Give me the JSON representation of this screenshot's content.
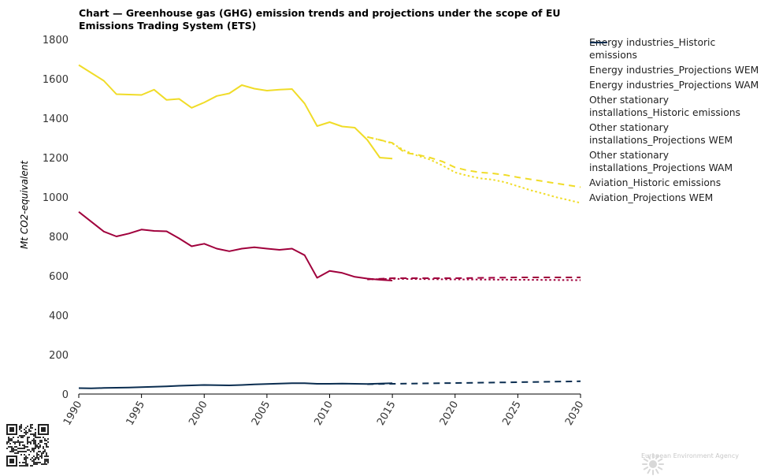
{
  "chart_data": {
    "type": "line",
    "title": "Chart — Greenhouse gas (GHG) emission trends and projections under the scope of EU Emissions Trading System (ETS)",
    "ylabel": "Mt CO2-equivalent",
    "xlabel": "",
    "ylim": [
      0,
      1800
    ],
    "xlim": [
      1990,
      2030
    ],
    "yticks": [
      0,
      200,
      400,
      600,
      800,
      1000,
      1200,
      1400,
      1600,
      1800
    ],
    "xticks": [
      1990,
      1995,
      2000,
      2005,
      2010,
      2015,
      2020,
      2025,
      2030
    ],
    "grid": false,
    "legend_position": "right",
    "series": [
      {
        "name": "Energy industries_Historic emissions",
        "color": "#f0dc28",
        "dash": "solid",
        "x": [
          1990,
          1991,
          1992,
          1993,
          1994,
          1995,
          1996,
          1997,
          1998,
          1999,
          2000,
          2001,
          2002,
          2003,
          2004,
          2005,
          2006,
          2007,
          2008,
          2009,
          2010,
          2011,
          2012,
          2013,
          2014,
          2015
        ],
        "y": [
          1670,
          1630,
          1590,
          1522,
          1520,
          1518,
          1545,
          1493,
          1498,
          1453,
          1480,
          1513,
          1526,
          1568,
          1550,
          1540,
          1545,
          1548,
          1475,
          1360,
          1380,
          1358,
          1352,
          1290,
          1200,
          1195
        ]
      },
      {
        "name": "Energy industries_Projections WEM",
        "color": "#f0dc28",
        "dash": "dashed",
        "x": [
          2013,
          2014,
          2015,
          2016,
          2017,
          2018,
          2019,
          2020,
          2021,
          2022,
          2023,
          2024,
          2025,
          2026,
          2027,
          2028,
          2029,
          2030
        ],
        "y": [
          1305,
          1290,
          1275,
          1225,
          1215,
          1200,
          1180,
          1150,
          1135,
          1125,
          1120,
          1112,
          1100,
          1090,
          1080,
          1070,
          1060,
          1050
        ]
      },
      {
        "name": "Energy industries_Projections WAM",
        "color": "#f0dc28",
        "dash": "dotted",
        "x": [
          2013,
          2014,
          2015,
          2016,
          2017,
          2018,
          2019,
          2020,
          2021,
          2022,
          2023,
          2024,
          2025,
          2026,
          2027,
          2028,
          2029,
          2030
        ],
        "y": [
          1305,
          1290,
          1272,
          1235,
          1210,
          1190,
          1160,
          1125,
          1108,
          1095,
          1088,
          1075,
          1055,
          1035,
          1018,
          1000,
          985,
          970
        ]
      },
      {
        "name": "Other stationary installations_Historic emissions",
        "color": "#a0003c",
        "dash": "solid",
        "x": [
          1990,
          1991,
          1992,
          1993,
          1994,
          1995,
          1996,
          1997,
          1998,
          1999,
          2000,
          2001,
          2002,
          2003,
          2004,
          2005,
          2006,
          2007,
          2008,
          2009,
          2010,
          2011,
          2012,
          2013,
          2014,
          2015
        ],
        "y": [
          925,
          875,
          825,
          800,
          815,
          835,
          828,
          826,
          790,
          750,
          763,
          738,
          725,
          738,
          745,
          738,
          732,
          738,
          705,
          590,
          625,
          615,
          595,
          586,
          580,
          576
        ]
      },
      {
        "name": "Other stationary installations_Projections WEM",
        "color": "#a0003c",
        "dash": "dashed",
        "x": [
          2013,
          2015,
          2020,
          2025,
          2030
        ],
        "y": [
          582,
          588,
          588,
          592,
          592
        ]
      },
      {
        "name": "Other stationary installations_Projections WAM",
        "color": "#a0003c",
        "dash": "dotted",
        "x": [
          2013,
          2015,
          2020,
          2025,
          2030
        ],
        "y": [
          582,
          585,
          582,
          580,
          578
        ]
      },
      {
        "name": "Aviation_Historic emissions",
        "color": "#0a2d50",
        "dash": "solid",
        "x": [
          1990,
          1991,
          1992,
          1993,
          1994,
          1995,
          1996,
          1997,
          1998,
          1999,
          2000,
          2001,
          2002,
          2003,
          2004,
          2005,
          2006,
          2007,
          2008,
          2009,
          2010,
          2011,
          2012,
          2013,
          2014,
          2015
        ],
        "y": [
          30,
          29,
          31,
          32,
          33,
          35,
          37,
          39,
          42,
          44,
          46,
          45,
          44,
          46,
          49,
          51,
          53,
          55,
          55,
          52,
          52,
          53,
          52,
          51,
          53,
          55
        ]
      },
      {
        "name": "Aviation_Projections WEM",
        "color": "#0a2d50",
        "dash": "dashed",
        "x": [
          2013,
          2015,
          2020,
          2025,
          2030
        ],
        "y": [
          50,
          52,
          56,
          60,
          65
        ]
      }
    ]
  },
  "footer": {
    "agency": "European Environment Agency",
    "qr_icon": "qr-code-icon",
    "logo_icon": "eea-sun-logo-icon"
  }
}
